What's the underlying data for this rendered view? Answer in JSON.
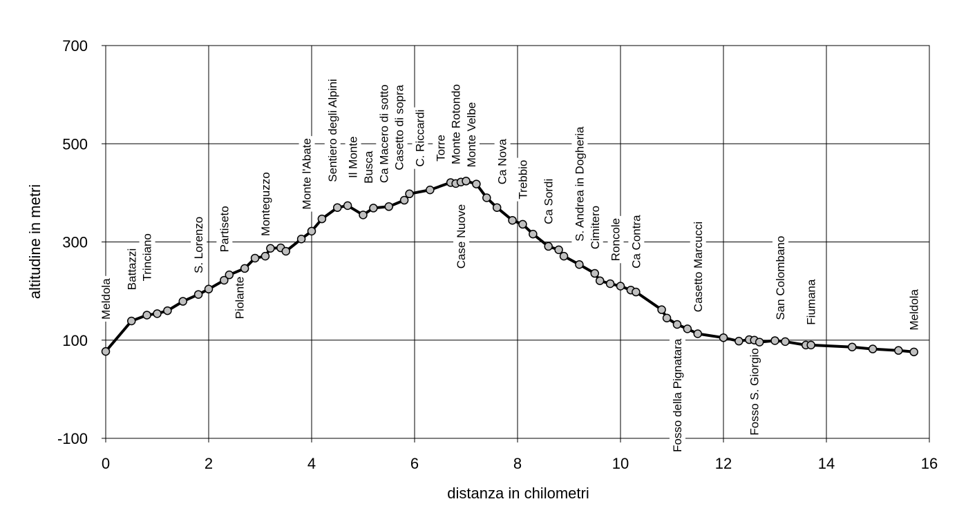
{
  "chart_data": {
    "type": "line",
    "title": "",
    "xlabel": "distanza in chilometri",
    "ylabel": "altitudine  in metri",
    "xlim": [
      0,
      16
    ],
    "ylim": [
      -100,
      700
    ],
    "x_ticks": [
      0,
      2,
      4,
      6,
      8,
      10,
      12,
      14,
      16
    ],
    "y_ticks": [
      -100,
      100,
      300,
      500,
      700
    ],
    "x_tick_labels": [
      "0",
      "2",
      "4",
      "6",
      "8",
      "10",
      "12",
      "14",
      "16"
    ],
    "y_tick_labels": [
      "-100",
      "100",
      "300",
      "500",
      "700"
    ],
    "grid": true,
    "legend": "none",
    "line_color": "#000000",
    "marker_color": "#c0c0c0",
    "series": [
      {
        "x": [
          0,
          0.5,
          0.8,
          1.0,
          1.2,
          1.5,
          1.8,
          2.0,
          2.3,
          2.4,
          2.7,
          2.9,
          3.1,
          3.2,
          3.4,
          3.5,
          3.8,
          4.0,
          4.2,
          4.5,
          4.7,
          5.0,
          5.2,
          5.5,
          5.8,
          5.9,
          6.3,
          6.7,
          6.8,
          6.9,
          7.0,
          7.2,
          7.4,
          7.6,
          7.9,
          8.1,
          8.3,
          8.6,
          8.8,
          8.9,
          9.2,
          9.5,
          9.6,
          9.8,
          10.0,
          10.2,
          10.3,
          10.8,
          10.9,
          11.1,
          11.3,
          11.5,
          12.0,
          12.3,
          12.5,
          12.6,
          12.7,
          13.0,
          13.2,
          13.6,
          13.7,
          14.5,
          14.9,
          15.4,
          15.7
        ],
        "y": [
          77,
          139,
          151,
          154,
          160,
          179,
          193,
          204,
          222,
          233,
          246,
          267,
          271,
          287,
          288,
          281,
          306,
          322,
          347,
          370,
          374,
          355,
          369,
          372,
          385,
          398,
          406,
          421,
          419,
          422,
          424,
          418,
          390,
          370,
          344,
          336,
          316,
          291,
          284,
          271,
          254,
          236,
          221,
          215,
          210,
          202,
          198,
          162,
          145,
          132,
          123,
          113,
          105,
          98,
          101,
          100,
          96,
          99,
          97,
          90,
          90,
          86,
          82,
          79,
          76
        ]
      }
    ],
    "annotations": [
      {
        "text": "Meldola",
        "x": 0.0,
        "y": 142,
        "side": "above"
      },
      {
        "text": "Battazzi",
        "x": 0.5,
        "y": 202,
        "side": "above"
      },
      {
        "text": "Trinciano",
        "x": 0.8,
        "y": 220,
        "side": "above"
      },
      {
        "text": "S. Lorenzo",
        "x": 1.8,
        "y": 236,
        "side": "above"
      },
      {
        "text": "Partiseto",
        "x": 2.3,
        "y": 279,
        "side": "above"
      },
      {
        "text": "Piolante",
        "x": 2.6,
        "y": 143,
        "side": "above"
      },
      {
        "text": "Monteguzzo",
        "x": 3.1,
        "y": 312,
        "side": "above"
      },
      {
        "text": "Monte l'Abate",
        "x": 3.9,
        "y": 366,
        "side": "above"
      },
      {
        "text": "Sentiero degli Alpini",
        "x": 4.4,
        "y": 422,
        "side": "above"
      },
      {
        "text": "Il Monte",
        "x": 4.8,
        "y": 430,
        "side": "above"
      },
      {
        "text": "Busca",
        "x": 5.1,
        "y": 419,
        "side": "above"
      },
      {
        "text": "Ca Macero di sotto",
        "x": 5.4,
        "y": 420,
        "side": "above"
      },
      {
        "text": "Casetto di sopra",
        "x": 5.7,
        "y": 446,
        "side": "above"
      },
      {
        "text": "C. Riccardi",
        "x": 6.1,
        "y": 453,
        "side": "above"
      },
      {
        "text": "Torre",
        "x": 6.5,
        "y": 464,
        "side": "above"
      },
      {
        "text": "Monte Rotondo",
        "x": 6.8,
        "y": 458,
        "side": "above"
      },
      {
        "text": "Monte Velbe",
        "x": 7.1,
        "y": 452,
        "side": "above"
      },
      {
        "text": "Case Nuove",
        "x": 6.9,
        "y": 377,
        "side": "below"
      },
      {
        "text": "Ca Nova",
        "x": 7.7,
        "y": 417,
        "side": "above"
      },
      {
        "text": "Trebbio",
        "x": 8.1,
        "y": 387,
        "side": "above"
      },
      {
        "text": "Ca Sordi",
        "x": 8.6,
        "y": 336,
        "side": "above"
      },
      {
        "text": "S. Andrea in Dogheria",
        "x": 9.2,
        "y": 301,
        "side": "above"
      },
      {
        "text": "Cimitero",
        "x": 9.5,
        "y": 285,
        "side": "above"
      },
      {
        "text": "Roncole",
        "x": 9.9,
        "y": 261,
        "side": "above"
      },
      {
        "text": "Ca Contra",
        "x": 10.3,
        "y": 246,
        "side": "above"
      },
      {
        "text": "Casetto Marcucci",
        "x": 11.5,
        "y": 157,
        "side": "above"
      },
      {
        "text": "Fosso della Pignatara",
        "x": 11.1,
        "y": 103,
        "side": "below"
      },
      {
        "text": "Fosso S. Giorgio",
        "x": 12.6,
        "y": 84,
        "side": "below"
      },
      {
        "text": "San Colombano",
        "x": 13.1,
        "y": 141,
        "side": "above"
      },
      {
        "text": "Fiumana",
        "x": 13.7,
        "y": 131,
        "side": "above"
      },
      {
        "text": "Meldola",
        "x": 15.7,
        "y": 120,
        "side": "above"
      }
    ]
  }
}
